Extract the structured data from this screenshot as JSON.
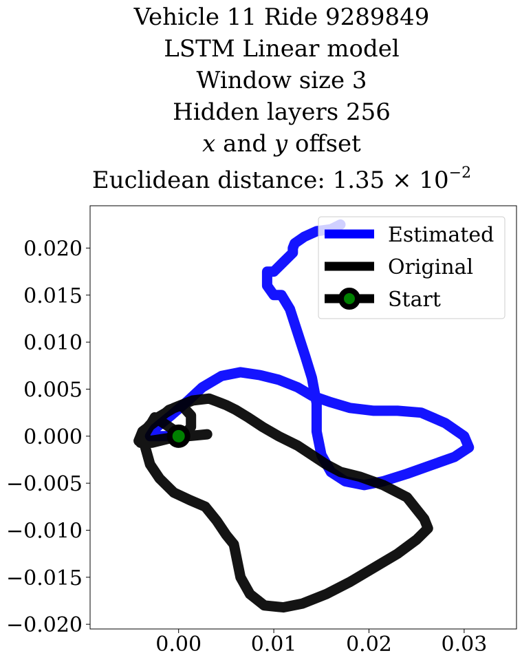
{
  "title": {
    "line1": "Vehicle 11 Ride 9289849",
    "line2": "LSTM Linear model",
    "line3": "Window size 3",
    "line4": "Hidden layers 256",
    "line5_x": "x",
    "line5_and": " and ",
    "line5_y": "y",
    "line5_rest": " offset",
    "line6_text": "Euclidean distance: 1.35",
    "line6_times": " × 10",
    "line6_exp": "−2"
  },
  "chart_data": {
    "type": "line",
    "title": "Vehicle 11 Ride 9289849 LSTM Linear model Window size 3 Hidden layers 256 x and y offset Euclidean distance: 1.35 × 10^-2",
    "xlabel": "",
    "ylabel": "",
    "xlim": [
      -0.0093,
      0.0355
    ],
    "ylim": [
      -0.0205,
      0.0245
    ],
    "x_ticks": [
      0.0,
      0.01,
      0.02,
      0.03
    ],
    "x_tick_labels": [
      "0.00",
      "0.01",
      "0.02",
      "0.03"
    ],
    "y_ticks": [
      -0.02,
      -0.015,
      -0.01,
      -0.005,
      0.0,
      0.005,
      0.01,
      0.015,
      0.02
    ],
    "y_tick_labels": [
      "−0.020",
      "−0.015",
      "−0.010",
      "−0.005",
      "0.000",
      "0.005",
      "0.010",
      "0.015",
      "0.020"
    ],
    "grid": false,
    "legend_position": "top-right",
    "legend": [
      {
        "label": "Estimated",
        "color": "#0000ff",
        "marker": "none"
      },
      {
        "label": "Original",
        "color": "#000000",
        "marker": "none"
      },
      {
        "label": "Start",
        "color": "#000000",
        "marker": "circle",
        "marker_face": "#008000"
      }
    ],
    "series": [
      {
        "name": "Estimated",
        "color": "#0000ff",
        "x": [
          0.0,
          -0.003,
          -0.0025,
          -0.0008,
          0.0008,
          0.0025,
          0.0045,
          0.0065,
          0.0085,
          0.0105,
          0.0125,
          0.014,
          0.016,
          0.018,
          0.0205,
          0.023,
          0.0255,
          0.028,
          0.03,
          0.0305,
          0.029,
          0.0265,
          0.024,
          0.0215,
          0.0195,
          0.0175,
          0.016,
          0.015,
          0.0145,
          0.0145,
          0.014,
          0.0133,
          0.0125,
          0.0117,
          0.0108,
          0.01,
          0.0093,
          0.0093,
          0.01,
          0.011,
          0.012,
          0.012,
          0.0122,
          0.0132,
          0.0145,
          0.016,
          0.017
        ],
        "y": [
          0.0,
          0.0,
          0.0008,
          0.0022,
          0.0036,
          0.0052,
          0.0064,
          0.0068,
          0.0065,
          0.006,
          0.0052,
          0.0043,
          0.0036,
          0.003,
          0.0027,
          0.0027,
          0.0025,
          0.0014,
          0.0,
          -0.0012,
          -0.0022,
          -0.0031,
          -0.004,
          -0.0048,
          -0.0052,
          -0.0048,
          -0.0038,
          -0.002,
          0.0005,
          0.0035,
          0.0062,
          0.0085,
          0.011,
          0.0135,
          0.015,
          0.015,
          0.016,
          0.0175,
          0.0175,
          0.0185,
          0.0195,
          0.02,
          0.0205,
          0.0212,
          0.0218,
          0.022,
          0.0225
        ]
      },
      {
        "name": "Original",
        "color": "#000000",
        "x": [
          0.0,
          -0.0028,
          -0.0042,
          -0.0038,
          -0.0025,
          -0.001,
          0.0003,
          0.0013,
          0.0013,
          0.0005,
          -0.001,
          -0.0025,
          -0.0035,
          -0.0035,
          -0.003,
          -0.002,
          -0.0005,
          0.0012,
          0.0028,
          0.004,
          0.005,
          0.0058,
          0.0065,
          0.0075,
          0.009,
          0.011,
          0.013,
          0.0155,
          0.018,
          0.0205,
          0.023,
          0.025,
          0.0262,
          0.0258,
          0.024,
          0.0215,
          0.019,
          0.017,
          0.0155,
          0.014,
          0.0125,
          0.0105,
          0.0088,
          0.0073,
          0.006,
          0.005,
          0.0045,
          0.004,
          0.0032,
          0.0015,
          -0.0005,
          -0.0025,
          -0.0038,
          -0.004,
          -0.003,
          -0.001,
          0.001,
          0.003
        ],
        "y": [
          0.0,
          -0.0007,
          -0.0005,
          0.0005,
          0.0015,
          0.0028,
          0.0033,
          0.0022,
          0.001,
          0.0,
          0.001,
          0.002,
          0.0003,
          -0.0012,
          -0.003,
          -0.0045,
          -0.006,
          -0.0068,
          -0.0075,
          -0.009,
          -0.0105,
          -0.0115,
          -0.015,
          -0.0168,
          -0.018,
          -0.0182,
          -0.0178,
          -0.0168,
          -0.0155,
          -0.014,
          -0.0125,
          -0.011,
          -0.0098,
          -0.0088,
          -0.0065,
          -0.0052,
          -0.0043,
          -0.0038,
          -0.003,
          -0.002,
          -0.001,
          0.0,
          0.001,
          0.002,
          0.0028,
          0.0033,
          0.0035,
          0.0037,
          0.004,
          0.0038,
          0.003,
          0.0018,
          0.0003,
          -0.0007,
          -0.0005,
          -0.0002,
          0.0,
          0.0002
        ]
      }
    ],
    "start_point": {
      "x": 0.0,
      "y": 0.0,
      "label": "Start"
    }
  }
}
